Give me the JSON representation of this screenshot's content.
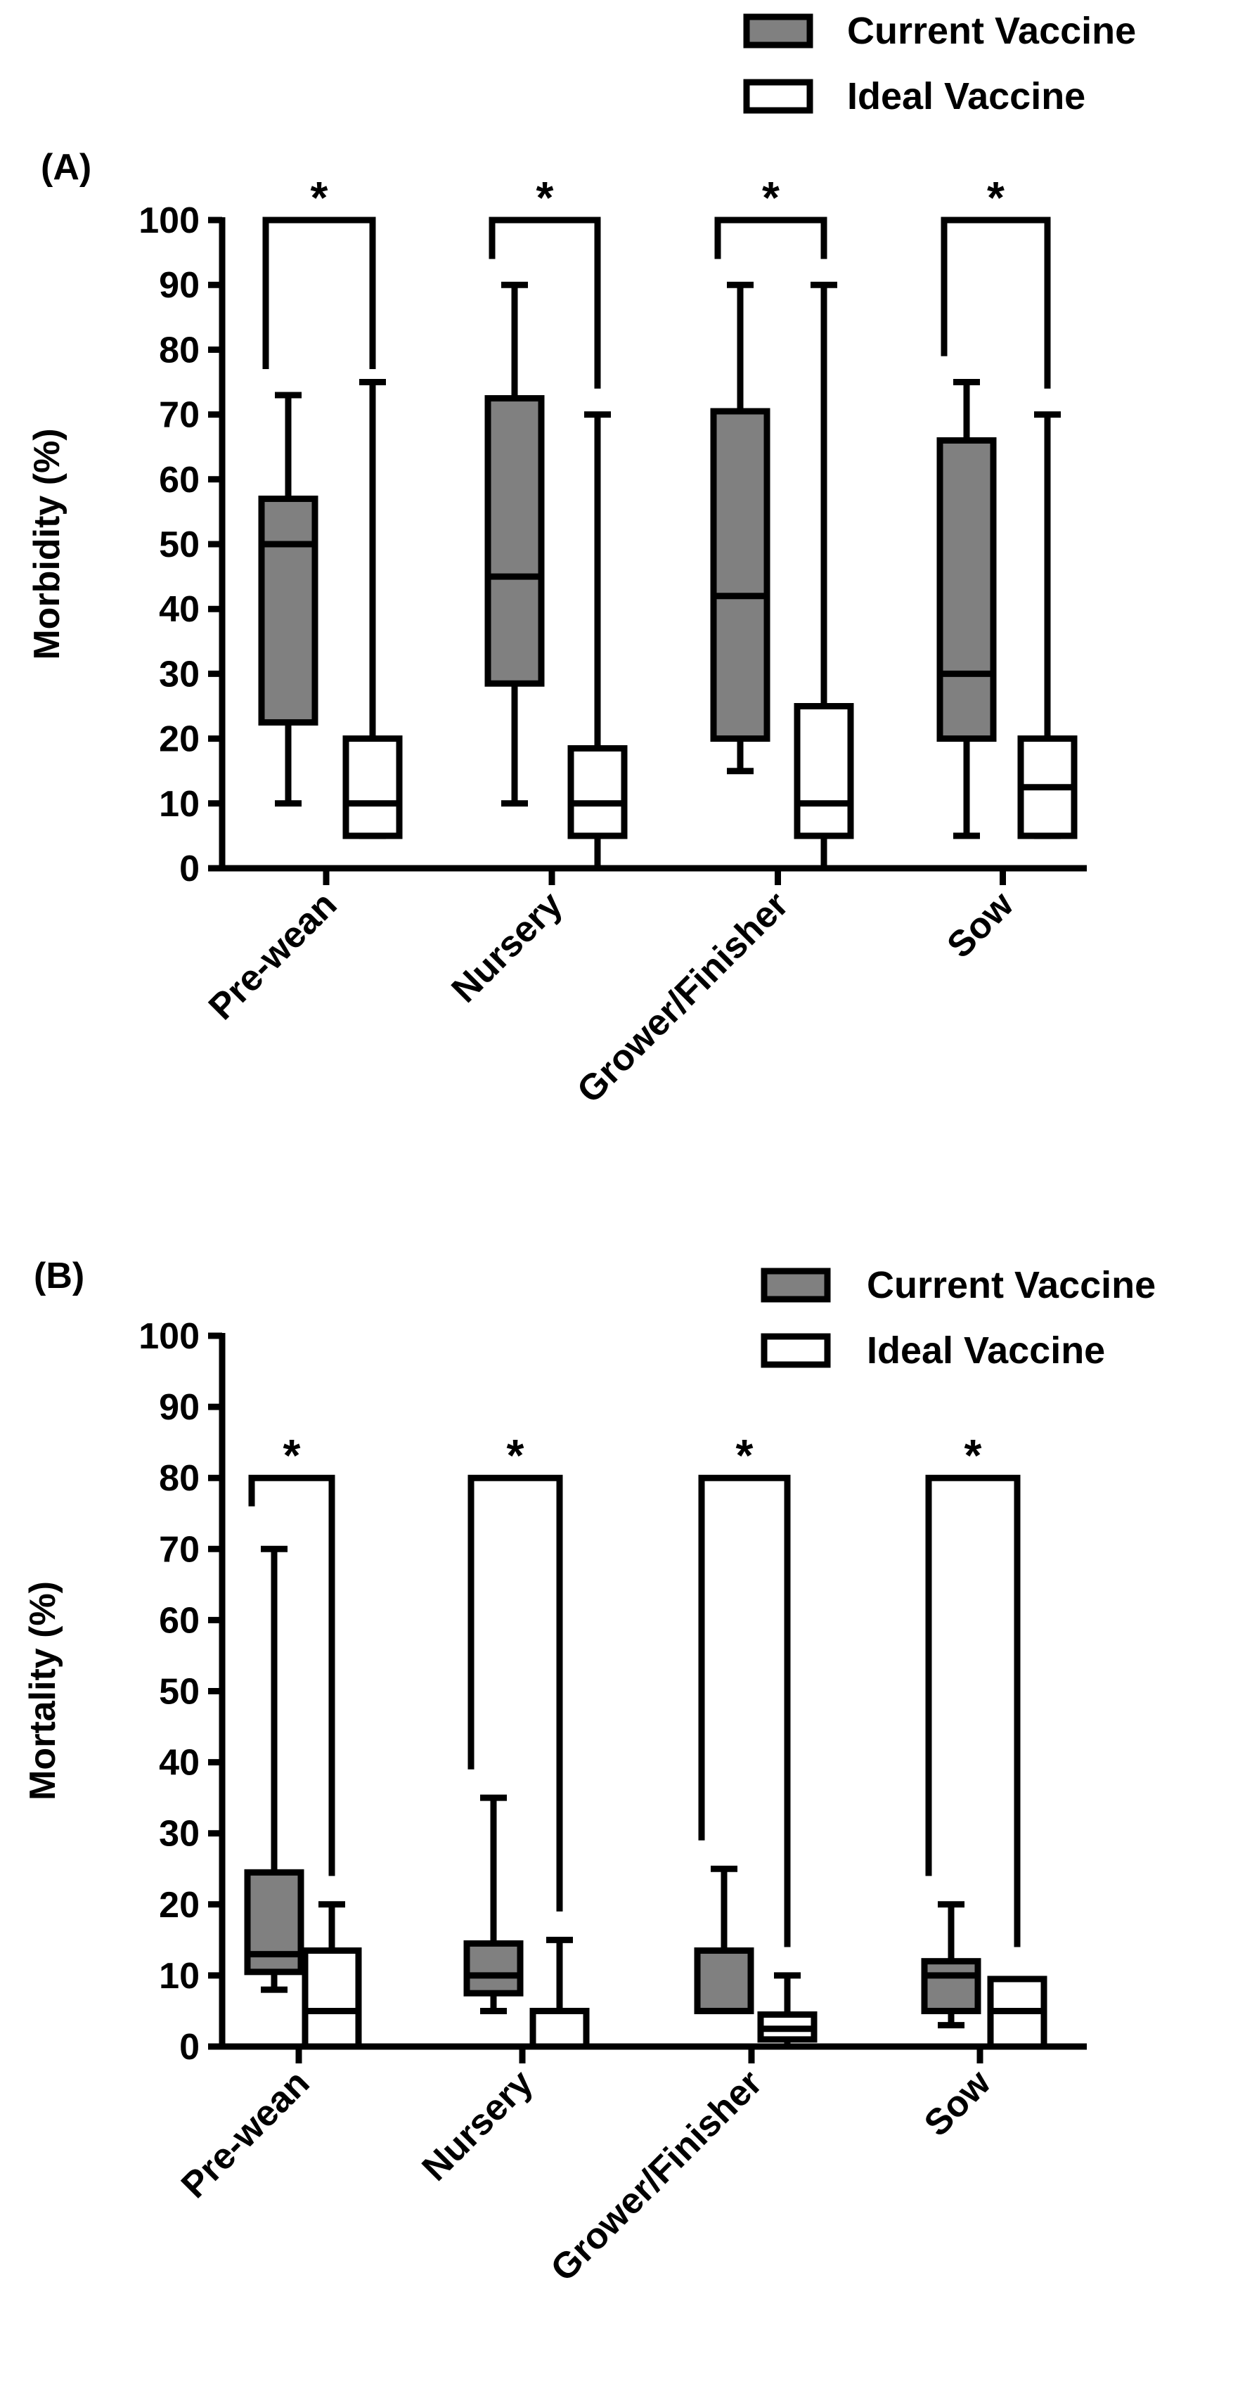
{
  "colors": {
    "current": "#808080",
    "ideal": "#ffffff",
    "stroke": "#000000",
    "background": "#ffffff"
  },
  "chart_data": [
    {
      "panel_label": "(A)",
      "type": "box",
      "ylabel": "Morbidity (%)",
      "ylim": [
        0,
        100
      ],
      "yticks": [
        0,
        10,
        20,
        30,
        40,
        50,
        60,
        70,
        80,
        90,
        100
      ],
      "categories": [
        "Pre-wean",
        "Nursery",
        "Grower/Finisher",
        "Sow"
      ],
      "legend": [
        "Current Vaccine",
        "Ideal Vaccine"
      ],
      "legend_position": "top-right",
      "series": [
        {
          "name": "Current Vaccine",
          "boxes": [
            {
              "min": 10,
              "q1": 22.5,
              "median": 50,
              "q3": 57,
              "max": 73
            },
            {
              "min": 10,
              "q1": 28.5,
              "median": 45,
              "q3": 72.5,
              "max": 90
            },
            {
              "min": 15,
              "q1": 20,
              "median": 42,
              "q3": 70.5,
              "max": 90
            },
            {
              "min": 5,
              "q1": 20,
              "median": 30,
              "q3": 66,
              "max": 75
            }
          ]
        },
        {
          "name": "Ideal Vaccine",
          "boxes": [
            {
              "min": 5,
              "q1": 5,
              "median": 10,
              "q3": 20,
              "max": 75
            },
            {
              "min": 0,
              "q1": 5,
              "median": 10,
              "q3": 18.5,
              "max": 70
            },
            {
              "min": 0,
              "q1": 5,
              "median": 10,
              "q3": 25,
              "max": 90
            },
            {
              "min": 5,
              "q1": 5,
              "median": 12.5,
              "q3": 20,
              "max": 70
            }
          ]
        }
      ],
      "significance": [
        {
          "category": "Pre-wean",
          "label": "*",
          "bracket_y": 100,
          "left_drop": 77,
          "right_drop": 77
        },
        {
          "category": "Nursery",
          "label": "*",
          "bracket_y": 100,
          "left_drop": 94,
          "right_drop": 74
        },
        {
          "category": "Grower/Finisher",
          "label": "*",
          "bracket_y": 100,
          "left_drop": 94,
          "right_drop": 94
        },
        {
          "category": "Sow",
          "label": "*",
          "bracket_y": 100,
          "left_drop": 79,
          "right_drop": 74
        }
      ]
    },
    {
      "panel_label": "(B)",
      "type": "box",
      "ylabel": "Mortality (%)",
      "ylim": [
        0,
        100
      ],
      "yticks": [
        0,
        10,
        20,
        30,
        40,
        50,
        60,
        70,
        80,
        90,
        100
      ],
      "categories": [
        "Pre-wean",
        "Nursery",
        "Grower/Finisher",
        "Sow"
      ],
      "legend": [
        "Current Vaccine",
        "Ideal Vaccine"
      ],
      "legend_position": "top-right",
      "series": [
        {
          "name": "Current Vaccine",
          "boxes": [
            {
              "min": 8,
              "q1": 10.5,
              "median": 13,
              "q3": 24.5,
              "max": 70
            },
            {
              "min": 5,
              "q1": 7.5,
              "median": 10,
              "q3": 14.5,
              "max": 35
            },
            {
              "min": 5,
              "q1": 5,
              "median": 5,
              "q3": 13.5,
              "max": 25
            },
            {
              "min": 3,
              "q1": 5,
              "median": 10,
              "q3": 12,
              "max": 20
            }
          ]
        },
        {
          "name": "Ideal Vaccine",
          "boxes": [
            {
              "min": 0,
              "q1": 0,
              "median": 5,
              "q3": 13.5,
              "max": 20
            },
            {
              "min": 0,
              "q1": 0,
              "median": 0,
              "q3": 5,
              "max": 15
            },
            {
              "min": 0,
              "q1": 1,
              "median": 2.5,
              "q3": 4.5,
              "max": 10
            },
            {
              "min": 0,
              "q1": 0,
              "median": 5,
              "q3": 9.5,
              "max": 9.5
            }
          ]
        }
      ],
      "significance": [
        {
          "category": "Pre-wean",
          "label": "*",
          "bracket_y": 80,
          "left_drop": 76,
          "right_drop": 24
        },
        {
          "category": "Nursery",
          "label": "*",
          "bracket_y": 80,
          "left_drop": 39,
          "right_drop": 19
        },
        {
          "category": "Grower/Finisher",
          "label": "*",
          "bracket_y": 80,
          "left_drop": 29,
          "right_drop": 14
        },
        {
          "category": "Sow",
          "label": "*",
          "bracket_y": 80,
          "left_drop": 24,
          "right_drop": 14
        }
      ]
    }
  ]
}
